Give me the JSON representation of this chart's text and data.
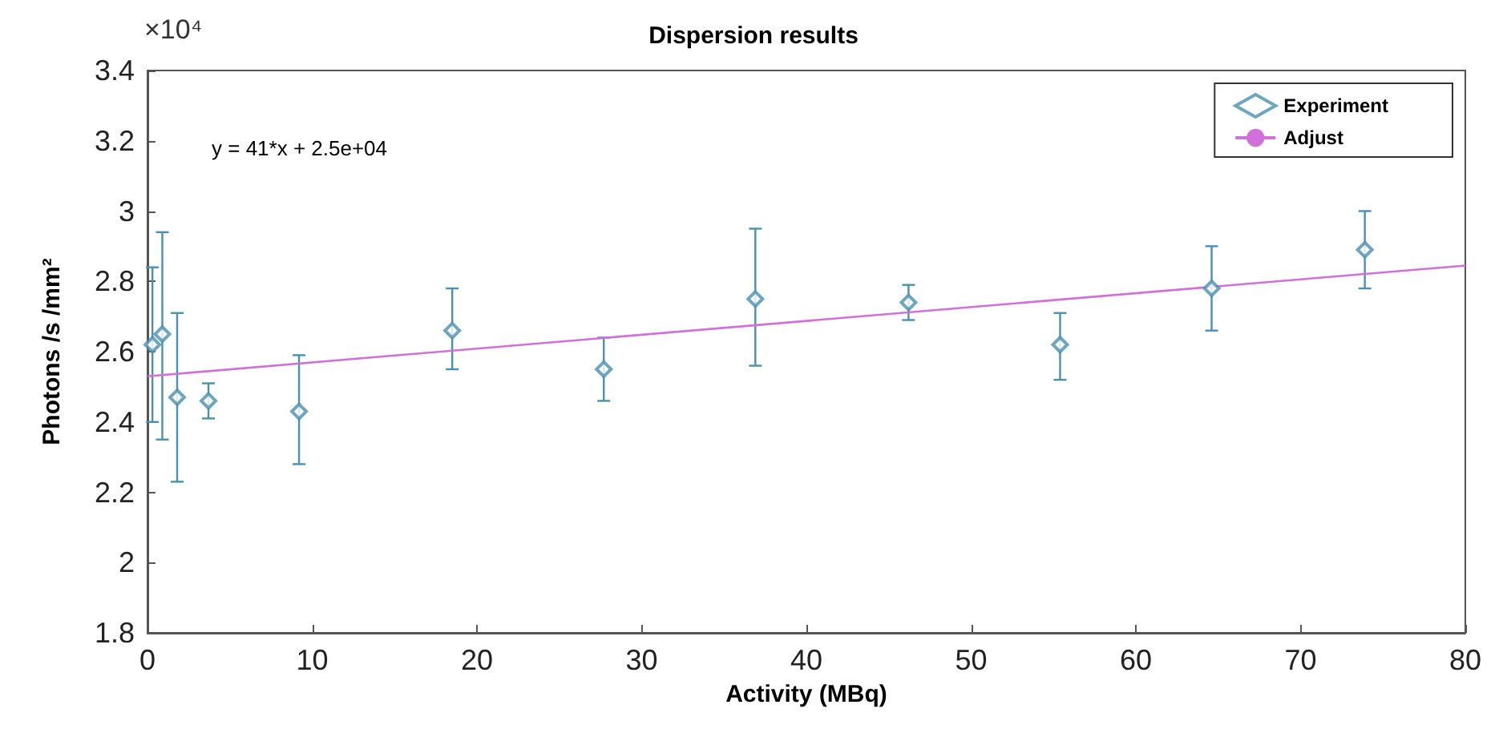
{
  "chart_data": {
    "type": "scatter",
    "title": "Dispersion results",
    "xlabel": "Activity (MBq)",
    "ylabel": "Photons /s /mm²",
    "annotations": [
      "y = 41*x + 2.5e+04",
      "×10⁴"
    ],
    "x": [
      0.3,
      0.9,
      1.8,
      3.7,
      9.2,
      18.5,
      27.7,
      36.9,
      46.2,
      55.4,
      64.6,
      73.9
    ],
    "series": [
      {
        "name": "Experiment",
        "color": "#4a90b0",
        "marker": "diamond",
        "values": [
          2.62,
          2.65,
          2.47,
          2.46,
          2.43,
          2.66,
          2.55,
          2.75,
          2.74,
          2.62,
          2.78,
          2.89
        ],
        "errors": [
          [
            2.4,
            2.84
          ],
          [
            2.35,
            2.94
          ],
          [
            2.23,
            2.71
          ],
          [
            2.41,
            2.51
          ],
          [
            2.28,
            2.59
          ],
          [
            2.55,
            2.78
          ],
          [
            2.46,
            2.64
          ],
          [
            2.56,
            2.95
          ],
          [
            2.69,
            2.79
          ],
          [
            2.52,
            2.71
          ],
          [
            2.66,
            2.9
          ],
          [
            2.78,
            3.0
          ]
        ]
      },
      {
        "name": "Adjust",
        "type": "line",
        "color": "#d070d8",
        "marker": "none",
        "x": [
          0,
          80
        ],
        "values": [
          2.53,
          2.845
        ]
      }
    ],
    "xlim": [
      0,
      80
    ],
    "xticks": [
      0,
      10,
      20,
      30,
      40,
      50,
      60,
      70,
      80
    ],
    "ylim": [
      1.8,
      3.4
    ],
    "yticks": [
      1.8,
      2,
      2.2,
      2.4,
      2.6,
      2.8,
      3,
      3.2,
      3.4
    ],
    "grid": false,
    "legend": "top right"
  }
}
